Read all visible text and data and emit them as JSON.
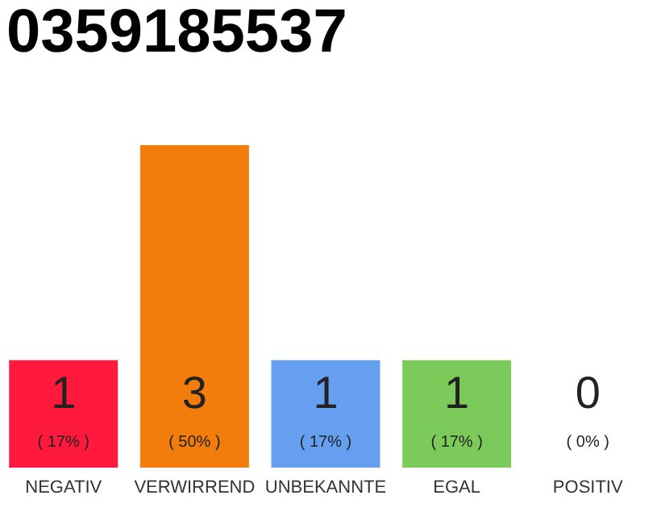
{
  "chart_data": {
    "type": "bar",
    "title": "0359185537",
    "categories": [
      "NEGATIV",
      "VERWIRREND",
      "UNBEKANNTE",
      "EGAL",
      "POSITIV"
    ],
    "values": [
      1,
      3,
      1,
      1,
      0
    ],
    "colors": [
      "#ff1a3d",
      "#f27d0c",
      "#669ef0",
      "#7ccb5a",
      "#eeeeee"
    ],
    "ylim": [
      0,
      3
    ],
    "data_labels": true,
    "annotations": [
      "( 17% )",
      "( 50% )",
      "( 17% )",
      "( 17% )",
      "( 0% )"
    ]
  }
}
